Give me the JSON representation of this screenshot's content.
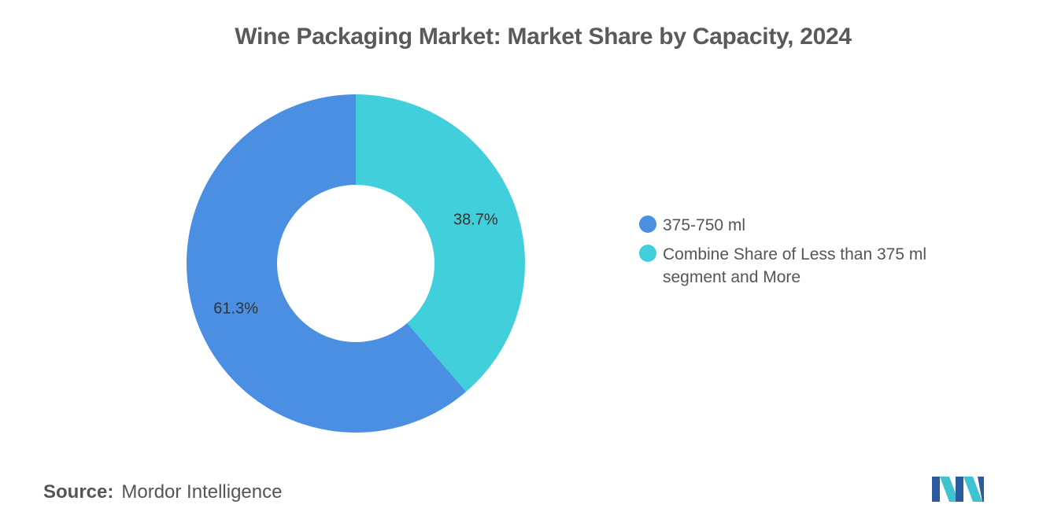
{
  "chart_data": {
    "type": "pie",
    "variant": "donut",
    "title": "Wine Packaging Market: Market Share by Capacity, 2024",
    "categories": [
      "375-750 ml",
      "Combine Share of Less than 375 ml segment and More"
    ],
    "values": [
      61.3,
      38.7
    ],
    "labels": [
      "61.3%",
      "38.7%"
    ],
    "colors": [
      "#4a8fe2",
      "#41cfdb"
    ],
    "legend_placement": "right"
  },
  "source": {
    "key": "Source:",
    "value": "Mordor Intelligence"
  },
  "logo": {
    "icon": "mordor-intelligence-logo-icon",
    "colors": [
      "#2b5a9e",
      "#3fc3d1"
    ]
  }
}
